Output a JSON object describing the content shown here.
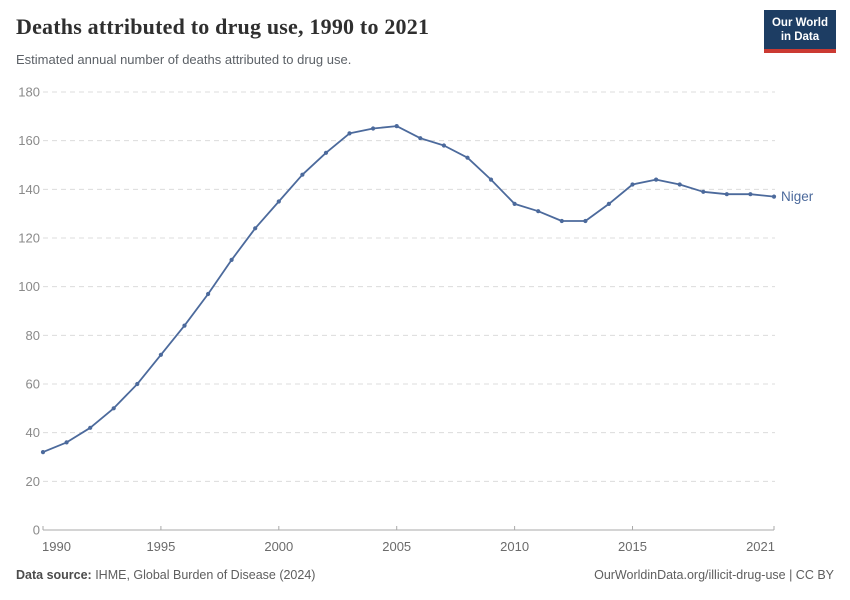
{
  "header": {
    "title": "Deaths attributed to drug use, 1990 to 2021",
    "subtitle": "Estimated annual number of deaths attributed to drug use.",
    "logo": {
      "line1": "Our World",
      "line2": "in Data",
      "bg_color": "#1d3d63",
      "accent_color": "#cb3a32"
    }
  },
  "chart_data": {
    "type": "line",
    "title": "Deaths attributed to drug use, 1990 to 2021",
    "xlabel": "",
    "ylabel": "",
    "x": [
      1990,
      1991,
      1992,
      1993,
      1994,
      1995,
      1996,
      1997,
      1998,
      1999,
      2000,
      2001,
      2002,
      2003,
      2004,
      2005,
      2006,
      2007,
      2008,
      2009,
      2010,
      2011,
      2012,
      2013,
      2014,
      2015,
      2016,
      2017,
      2018,
      2019,
      2020,
      2021
    ],
    "series": [
      {
        "name": "Niger",
        "color": "#4c6a9c",
        "values": [
          32,
          36,
          42,
          50,
          60,
          72,
          84,
          97,
          111,
          124,
          135,
          146,
          155,
          163,
          165,
          166,
          161,
          158,
          153,
          144,
          134,
          131,
          127,
          127,
          134,
          142,
          144,
          142,
          139,
          138,
          138,
          137
        ]
      }
    ],
    "xlim": [
      1990,
      2021
    ],
    "ylim": [
      0,
      180
    ],
    "yticks": [
      0,
      20,
      40,
      60,
      80,
      100,
      120,
      140,
      160,
      180
    ],
    "xticks": [
      1990,
      1995,
      2000,
      2005,
      2010,
      2015,
      2021
    ],
    "grid": "horizontal-dashed",
    "legend": "end-of-line-label",
    "grid_color": "#dcdcdc",
    "axis_color": "#a9a9a9",
    "ytick_label_color": "#8a8a8a",
    "xtick_label_color": "#6b6b6b"
  },
  "footer": {
    "source_label": "Data source:",
    "source_value": " IHME, Global Burden of Disease (2024)",
    "credit": "OurWorldinData.org/illicit-drug-use | CC BY"
  }
}
